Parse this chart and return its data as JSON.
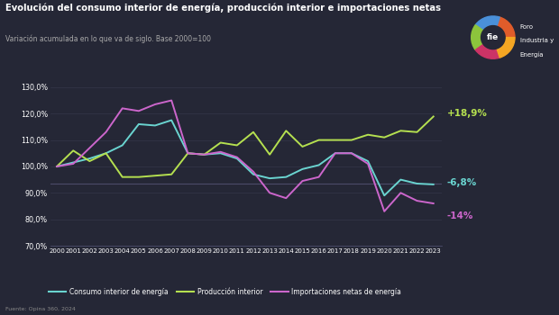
{
  "title": "Evolución del consumo interior de energía, producción interior e importaciones netas",
  "subtitle": "Variación acumulada en lo que va de siglo. Base 2000=100",
  "source": "Fuente: Opina 360, 2024",
  "background_color": "#252736",
  "years": [
    2000,
    2001,
    2002,
    2003,
    2004,
    2005,
    2006,
    2007,
    2008,
    2009,
    2010,
    2011,
    2012,
    2013,
    2014,
    2015,
    2016,
    2017,
    2018,
    2019,
    2020,
    2021,
    2022,
    2023
  ],
  "consumo": [
    100.0,
    101.5,
    103.0,
    105.0,
    108.0,
    116.0,
    115.5,
    117.5,
    105.0,
    104.5,
    105.0,
    103.0,
    97.0,
    95.5,
    96.0,
    99.0,
    100.5,
    105.0,
    105.0,
    102.0,
    89.0,
    95.0,
    93.5,
    93.2
  ],
  "produccion": [
    100.0,
    106.0,
    102.0,
    105.0,
    96.0,
    96.0,
    96.5,
    97.0,
    105.0,
    104.5,
    109.0,
    108.0,
    113.0,
    104.5,
    113.5,
    107.5,
    110.0,
    110.0,
    110.0,
    112.0,
    111.0,
    113.5,
    113.0,
    118.9
  ],
  "importaciones": [
    100.0,
    101.0,
    107.0,
    113.0,
    122.0,
    121.0,
    123.5,
    125.0,
    105.0,
    104.5,
    105.5,
    103.5,
    98.0,
    90.0,
    88.0,
    94.5,
    96.0,
    105.0,
    105.0,
    101.0,
    83.0,
    90.0,
    87.0,
    86.0
  ],
  "consumo_color": "#6ad4d0",
  "produccion_color": "#b5e050",
  "importaciones_color": "#cc66cc",
  "ylim": [
    70,
    132
  ],
  "yticks": [
    70,
    80,
    90,
    100,
    110,
    120,
    130
  ],
  "ytick_labels": [
    "70,0%",
    "80,0%",
    "90,0%",
    "100,0%",
    "110,0%",
    "120,0%",
    "130,0%"
  ],
  "annotation_produccion": "+18,9%",
  "annotation_consumo": "-6,8%",
  "annotation_importaciones": "-14%",
  "grid_color": "#3a3c52",
  "hline_y": 93.5,
  "hline_color": "#555577",
  "legend_consumo": "Consumo interior de energía",
  "legend_produccion": "Producción interior",
  "legend_importaciones": "Importaciones netas de energía"
}
